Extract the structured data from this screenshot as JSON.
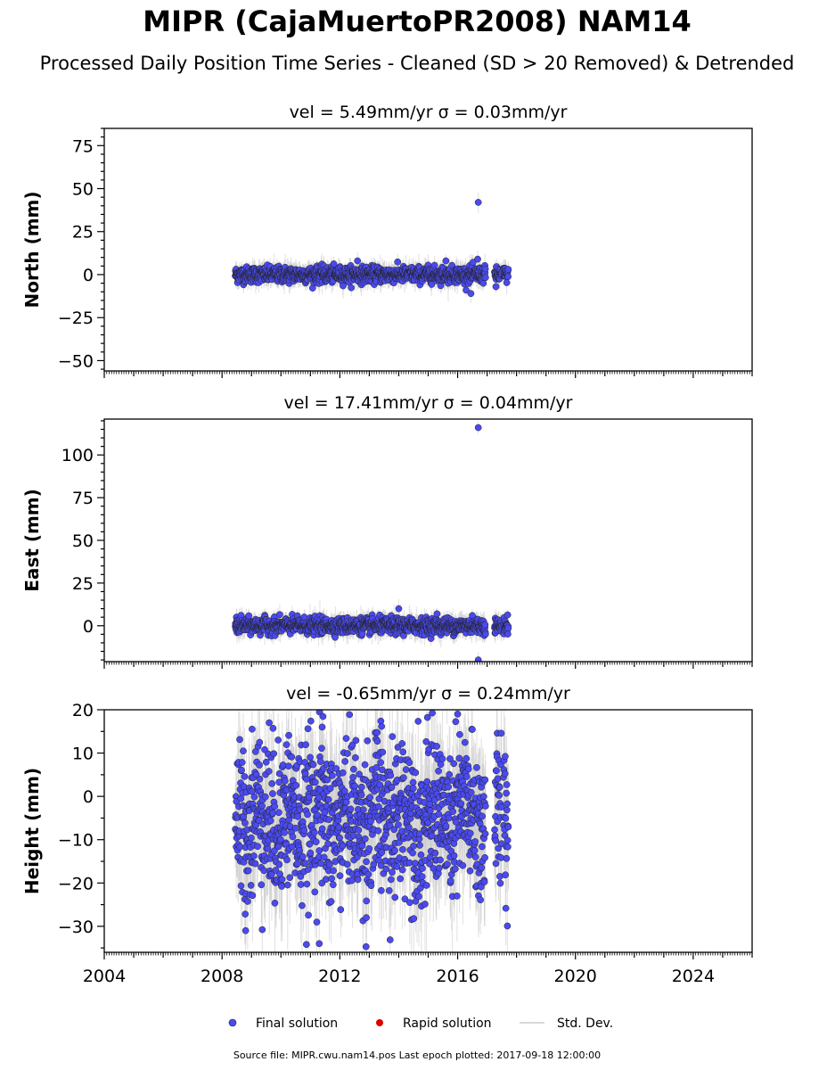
{
  "figure": {
    "title": "MIPR (CajaMuertoPR2008) NAM14",
    "subtitle": "Processed Daily Position Time Series - Cleaned (SD > 20 Removed) & Detrended",
    "footer": "Source file: MIPR.cwu.nam14.pos  Last epoch plotted: 2017-09-18 12:00:00"
  },
  "legend": {
    "final_label": "Final solution",
    "rapid_label": "Rapid solution",
    "std_label": "Std. Dev.",
    "final_color": "#4a4af0",
    "rapid_color": "#dd0000",
    "std_color": "#cccccc"
  },
  "chart_data": [
    {
      "type": "scatter",
      "panel": "north",
      "vel_label": "vel = 5.49mm/yr   σ = 0.03mm/yr",
      "ylabel": "North (mm)",
      "xlim": [
        2004,
        2026
      ],
      "ylim": [
        -56,
        85
      ],
      "xticks": [
        "2004",
        "2008",
        "2012",
        "2016",
        "2020",
        "2024"
      ],
      "yticks": [
        "75",
        "50",
        "25",
        "0",
        "−25",
        "−50"
      ],
      "series": [
        {
          "name": "Final solution",
          "data_range": [
            2008.45,
            2017.72
          ],
          "gaps": [
            [
              2016.95,
              2017.25
            ],
            [
              2017.5,
              2017.55
            ]
          ],
          "typical_spread_mm": 2.5,
          "outliers": [
            [
              2016.7,
              42
            ],
            [
              2016.68,
              9
            ],
            [
              2016.45,
              -11
            ],
            [
              2015.6,
              8
            ],
            [
              2012.6,
              8
            ],
            [
              2017.3,
              -7
            ]
          ]
        }
      ]
    },
    {
      "type": "scatter",
      "panel": "east",
      "vel_label": "vel = 17.41mm/yr   σ = 0.04mm/yr",
      "ylabel": "East (mm)",
      "xlim": [
        2004,
        2026
      ],
      "ylim": [
        -21,
        121
      ],
      "xticks": [
        "2004",
        "2008",
        "2012",
        "2016",
        "2020",
        "2024"
      ],
      "yticks": [
        "100",
        "75",
        "50",
        "25",
        "0"
      ],
      "series": [
        {
          "name": "Final solution",
          "data_range": [
            2008.45,
            2017.72
          ],
          "gaps": [
            [
              2016.95,
              2017.25
            ],
            [
              2017.5,
              2017.55
            ]
          ],
          "typical_spread_mm": 2.5,
          "outliers": [
            [
              2016.7,
              116
            ],
            [
              2016.7,
              -20
            ],
            [
              2014.0,
              10
            ],
            [
              2015.3,
              7
            ],
            [
              2016.5,
              6
            ]
          ]
        }
      ]
    },
    {
      "type": "scatter",
      "panel": "height",
      "vel_label": "vel = -0.65mm/yr   σ = 0.24mm/yr",
      "ylabel": "Height (mm)",
      "xlim": [
        2004,
        2026
      ],
      "ylim": [
        -36,
        20
      ],
      "xticks": [
        "2004",
        "2008",
        "2012",
        "2016",
        "2020",
        "2024"
      ],
      "yticks": [
        "20",
        "10",
        "0",
        "−10",
        "−20",
        "−30"
      ],
      "series": [
        {
          "name": "Final solution",
          "data_range": [
            2008.45,
            2017.72
          ],
          "gaps": [
            [
              2016.95,
              2017.25
            ],
            [
              2017.5,
              2017.55
            ]
          ],
          "typical_spread_mm": 9,
          "outliers": [
            [
              2011.3,
              -34
            ],
            [
              2008.8,
              -31
            ],
            [
              2012.9,
              -28
            ],
            [
              2016.0,
              19
            ],
            [
              2009.6,
              17
            ],
            [
              2011.4,
              16
            ]
          ]
        }
      ]
    }
  ]
}
